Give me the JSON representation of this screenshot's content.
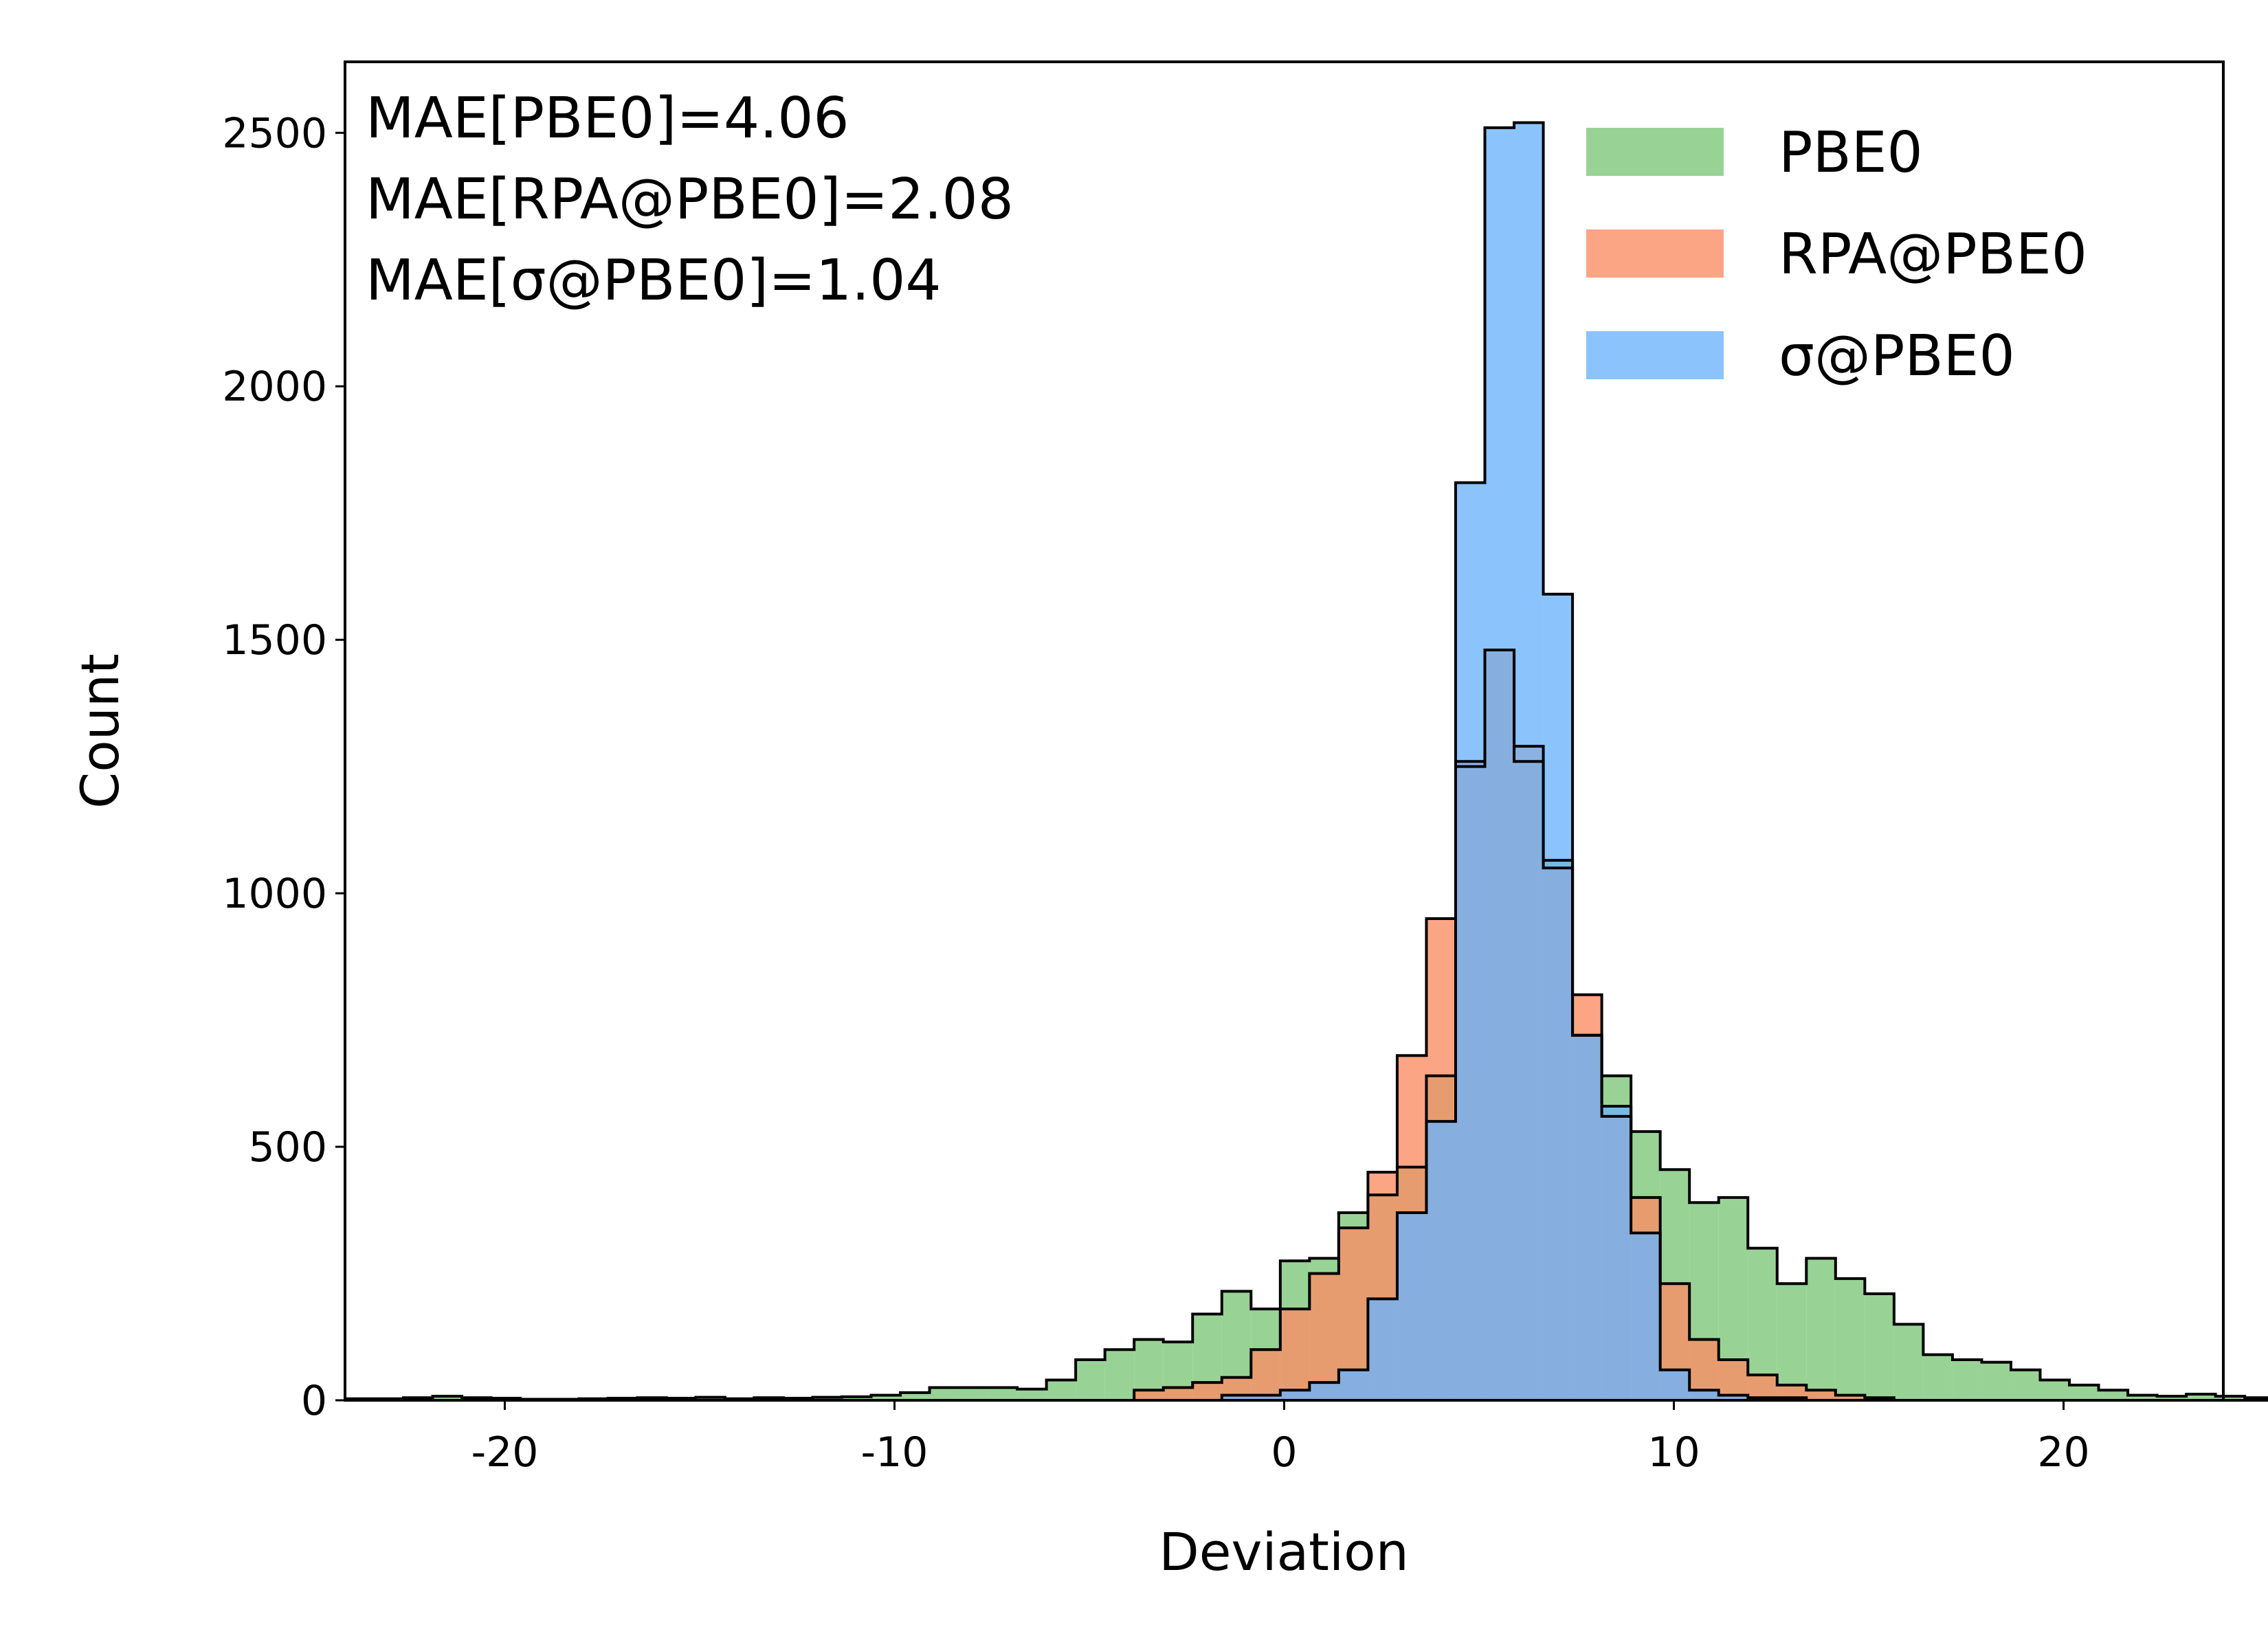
{
  "chart_data": {
    "type": "bar",
    "xlabel": "Deviation",
    "ylabel": "Count",
    "xlim": [
      -24.1,
      24.1
    ],
    "ylim": [
      0,
      2640
    ],
    "x_ticks": [
      -20,
      -10,
      0,
      10,
      20
    ],
    "x_tick_labels": [
      "-20",
      "-10",
      "0",
      "10",
      "20"
    ],
    "y_ticks": [
      0,
      500,
      1000,
      1500,
      2000,
      2500
    ],
    "y_tick_labels": [
      "0",
      "500",
      "1000",
      "1500",
      "2000",
      "2500"
    ],
    "grid": false,
    "legend_position": "top-right",
    "bins_start": -24.1,
    "bin_width": 0.75,
    "annotations": [
      "MAE[PBE0]=4.06",
      "MAE[RPA@PBE0]=2.08",
      "MAE[σ@PBE0]=1.04"
    ],
    "series": [
      {
        "name": "PBE0",
        "color": "#7ec87a",
        "opacity": 0.8,
        "values": [
          3,
          3,
          5,
          8,
          5,
          4,
          2,
          2,
          3,
          4,
          5,
          4,
          6,
          3,
          5,
          4,
          6,
          7,
          10,
          15,
          25,
          25,
          25,
          22,
          40,
          80,
          100,
          120,
          115,
          170,
          215,
          180,
          275,
          280,
          370,
          405,
          460,
          640,
          1250,
          1480,
          1260,
          1065,
          720,
          640,
          530,
          455,
          390,
          400,
          300,
          230,
          280,
          240,
          210,
          150,
          90,
          80,
          75,
          60,
          40,
          30,
          20,
          10,
          8,
          12,
          8,
          5,
          6,
          5,
          7,
          3,
          4,
          3,
          8,
          5,
          3,
          4,
          5
        ]
      },
      {
        "name": "RPA@PBE0",
        "color": "#fb8f67",
        "opacity": 0.8,
        "values": [
          0,
          0,
          0,
          0,
          0,
          0,
          0,
          0,
          0,
          0,
          0,
          0,
          0,
          0,
          0,
          0,
          0,
          0,
          0,
          0,
          0,
          0,
          0,
          0,
          0,
          0,
          0,
          20,
          25,
          35,
          45,
          100,
          180,
          250,
          340,
          450,
          680,
          950,
          1260,
          1480,
          1290,
          1050,
          800,
          560,
          400,
          230,
          120,
          80,
          50,
          30,
          20,
          10,
          5,
          0,
          0,
          0,
          0,
          0,
          0,
          0,
          0,
          0,
          0,
          0,
          0,
          0,
          0,
          0,
          0,
          0,
          0,
          0,
          0,
          0,
          0,
          0,
          0
        ]
      },
      {
        "name": "σ@PBE0",
        "color": "#6eb4fc",
        "opacity": 0.8,
        "values": [
          0,
          0,
          0,
          0,
          0,
          0,
          0,
          0,
          0,
          0,
          0,
          0,
          0,
          0,
          0,
          0,
          0,
          0,
          0,
          0,
          0,
          0,
          0,
          0,
          0,
          0,
          0,
          0,
          0,
          0,
          10,
          10,
          20,
          35,
          60,
          200,
          370,
          550,
          1810,
          2510,
          2520,
          1590,
          720,
          580,
          330,
          60,
          20,
          10,
          5,
          5,
          0,
          0,
          0,
          0,
          0,
          0,
          0,
          0,
          0,
          0,
          0,
          0,
          0,
          0,
          0,
          0,
          0,
          0,
          0,
          0,
          0,
          0,
          0,
          0,
          0,
          0,
          0
        ]
      }
    ]
  }
}
